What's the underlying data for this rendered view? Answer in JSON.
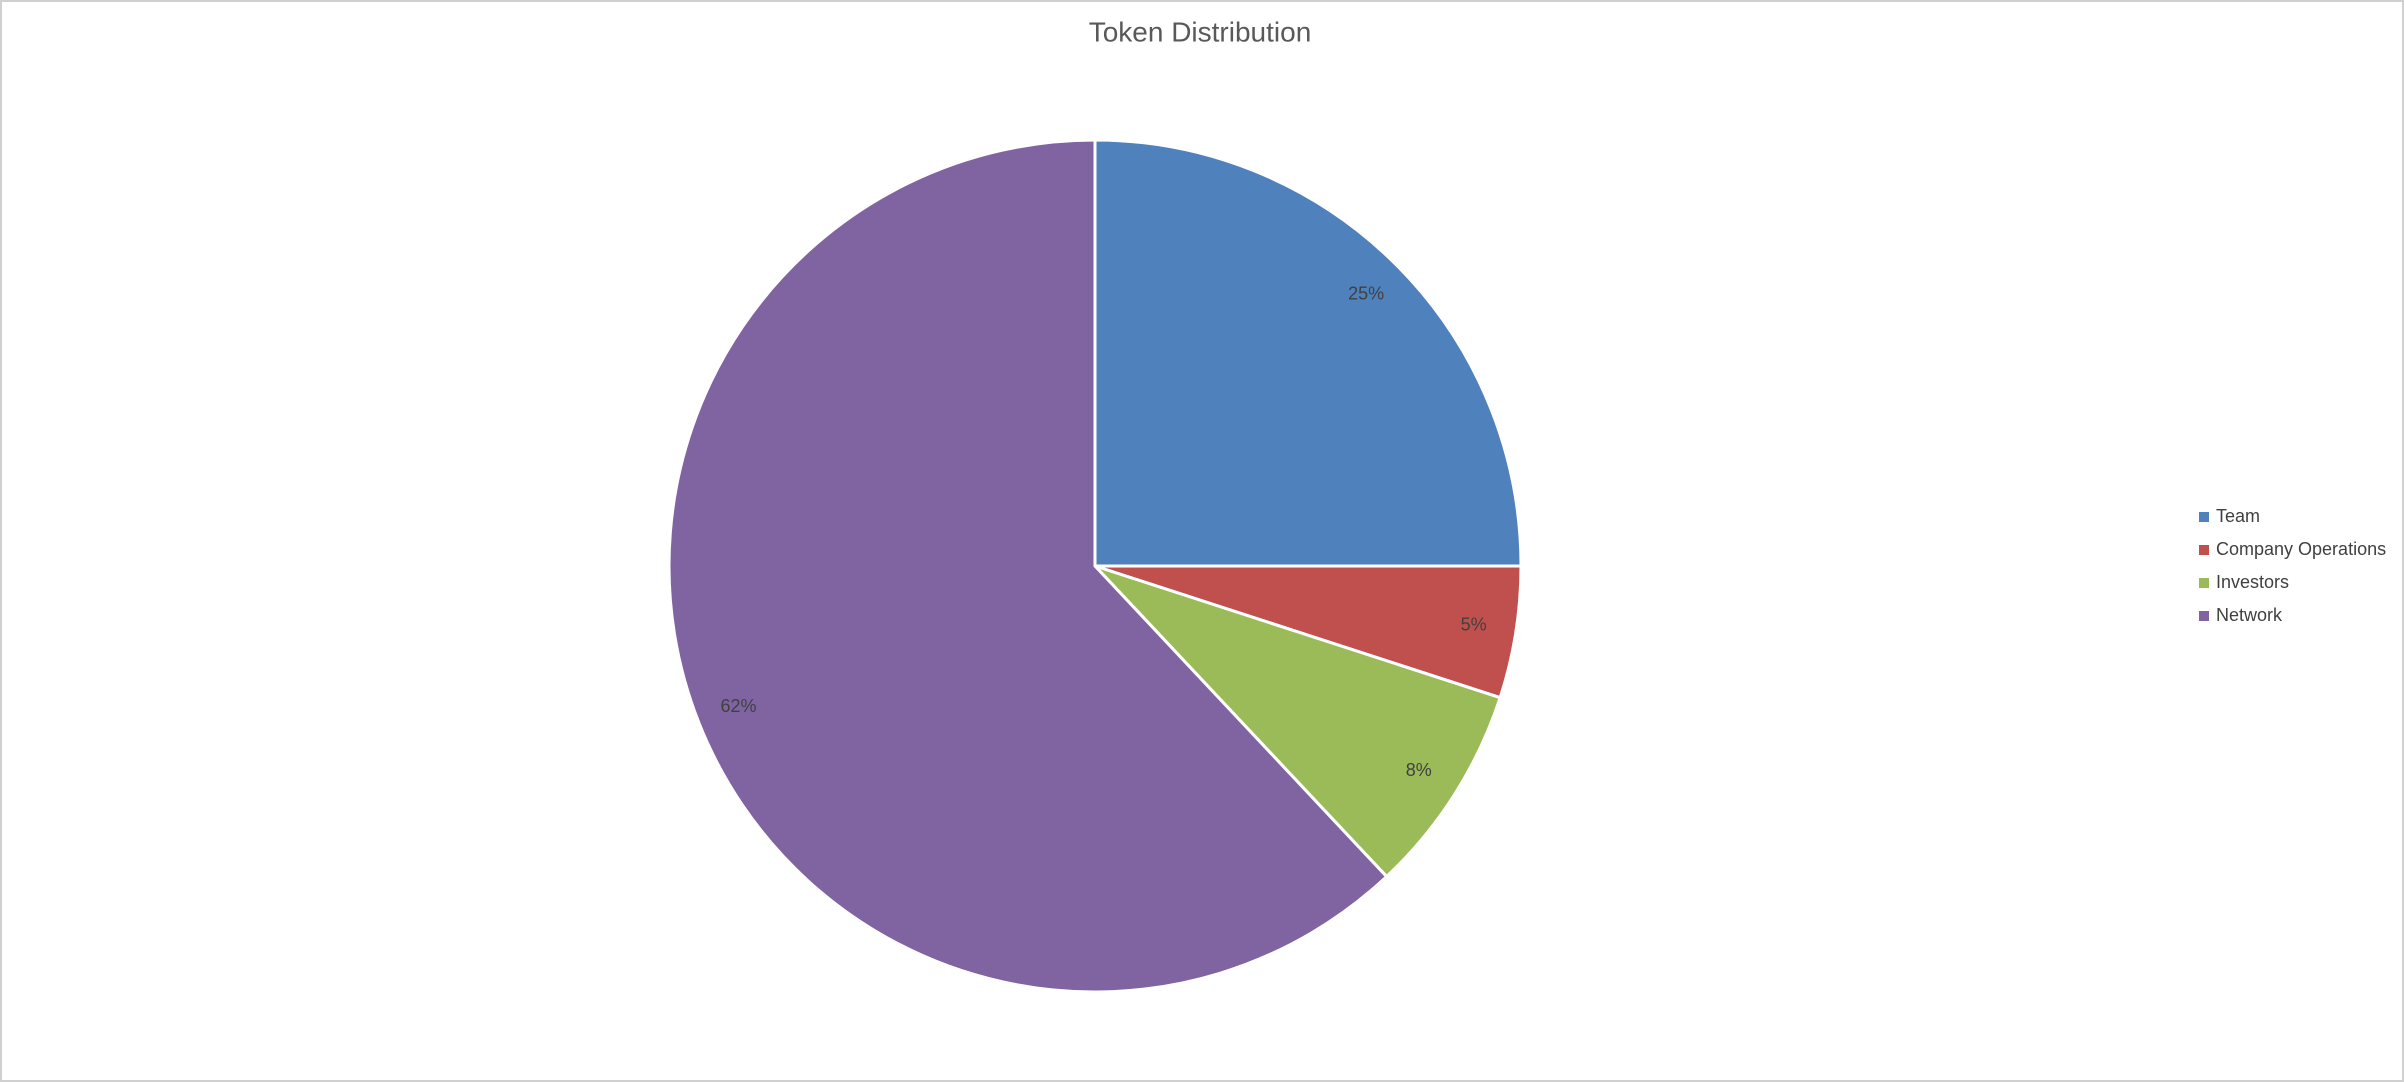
{
  "chart_data": {
    "type": "pie",
    "title": "Token Distribution",
    "categories": [
      "Team",
      "Company Operations",
      "Investors",
      "Network"
    ],
    "values": [
      25,
      5,
      8,
      62
    ],
    "value_labels": [
      "25%",
      "5%",
      "8%",
      "62%"
    ],
    "colors": [
      "#4f81bd",
      "#c0504d",
      "#9bbb59",
      "#8064a2"
    ],
    "legend": "right"
  }
}
